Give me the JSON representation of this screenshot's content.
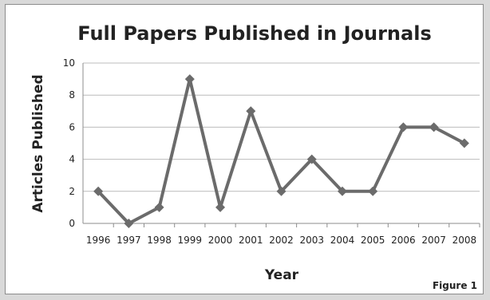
{
  "chart_data": {
    "type": "line",
    "title": "Full Papers Published in Journals",
    "xlabel": "Year",
    "ylabel": "Articles Published",
    "categories": [
      "1996",
      "1997",
      "1998",
      "1999",
      "2000",
      "2001",
      "2002",
      "2003",
      "2004",
      "2005",
      "2006",
      "2007",
      "2008"
    ],
    "series": [
      {
        "values": [
          2,
          0,
          1,
          9,
          1,
          7,
          2,
          4,
          2,
          2,
          6,
          6,
          5
        ]
      }
    ],
    "ylim": [
      0,
      10
    ],
    "yticks": [
      "0",
      "2",
      "4",
      "6",
      "8",
      "10"
    ],
    "grid": true,
    "legend": "none",
    "line_color": "#6b6b6b",
    "grid_color": "#bcbcbc",
    "caption": "Figure 1"
  }
}
